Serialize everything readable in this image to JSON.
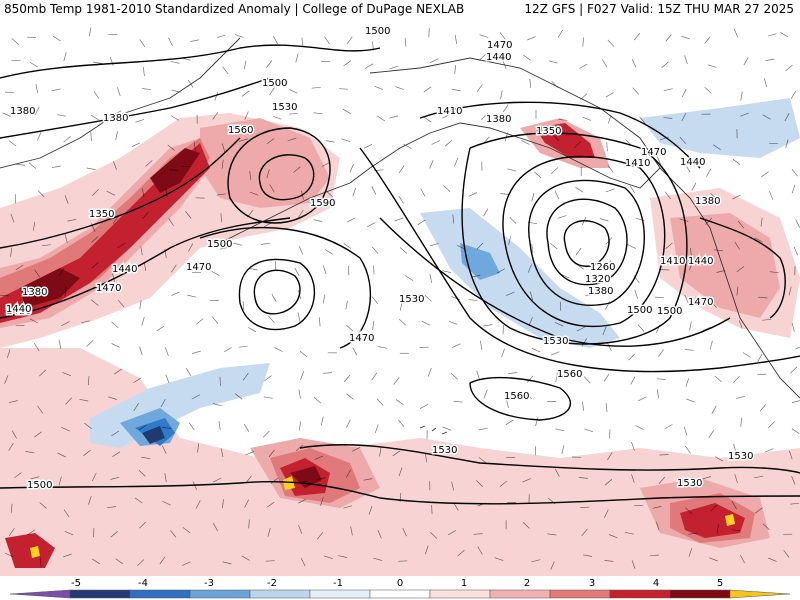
{
  "header": {
    "title_left": "850mb Temp 1981-2010 Standardized Anomaly | College of DuPage NEXLAB",
    "title_right": "12Z GFS | F027 Valid: 15Z THU MAR 27 2025"
  },
  "map": {
    "contour_labels": [
      "1500",
      "1470",
      "1440",
      "1380",
      "1380",
      "1500",
      "1530",
      "1560",
      "1590",
      "1350",
      "1380",
      "1440",
      "1470",
      "1410",
      "1500",
      "1470",
      "1530",
      "1470",
      "1410",
      "1380",
      "1350",
      "1260",
      "1320",
      "1380",
      "1500",
      "1530",
      "1560",
      "1560",
      "1530",
      "1500",
      "1530",
      "1530",
      "1470",
      "1410",
      "1440",
      "1440",
      "1380",
      "1410",
      "1440",
      "1470",
      "1500"
    ],
    "anomaly_colors": {
      "neg5": "#6a3d9a",
      "neg4": "#1f3a6e",
      "neg3": "#2f7ac9",
      "neg2": "#6fa8dc",
      "neg1": "#c6daf0",
      "zero": "#ffffff",
      "pos1": "#f7d3d3",
      "pos2": "#eeaaaa",
      "pos3": "#e07a7a",
      "pos4": "#c3212f",
      "pos5": "#7d0a14",
      "pos6": "#ffd21a"
    }
  },
  "colorbar": {
    "ticks": [
      "-5",
      "-4",
      "-3",
      "-2",
      "-1",
      "0",
      "1",
      "2",
      "3",
      "4",
      "5"
    ],
    "colors": [
      "#7b4fa8",
      "#233b75",
      "#2f70c0",
      "#6aa3d9",
      "#bcd5ee",
      "#e6eef7",
      "#ffffff",
      "#fbe0e0",
      "#f2b0b0",
      "#e27a7a",
      "#c6222e",
      "#7f0a12",
      "#f5c518"
    ]
  }
}
